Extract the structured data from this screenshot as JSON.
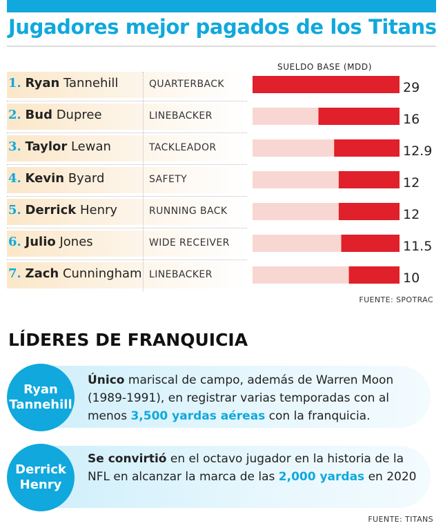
{
  "title": "Jugadores mejor pagados de los Titans",
  "chart_data": {
    "type": "bar",
    "value_header": "SUELDO BASE (MDD)",
    "xlim": [
      0,
      29
    ],
    "categories": [
      "Ryan Tannehill",
      "Bud Dupree",
      "Taylor Lewan",
      "Kevin Byard",
      "Derrick Henry",
      "Julio Jones",
      "Zach Cunningham"
    ],
    "values": [
      29,
      16,
      12.9,
      12,
      12,
      11.5,
      10
    ],
    "rows": [
      {
        "rank": "1.",
        "first": "Ryan",
        "last": "Tannehill",
        "position": "QUARTERBACK",
        "value": 29,
        "label": "29"
      },
      {
        "rank": "2.",
        "first": "Bud",
        "last": "Dupree",
        "position": "LINEBACKER",
        "value": 16,
        "label": "16"
      },
      {
        "rank": "3.",
        "first": "Taylor",
        "last": "Lewan",
        "position": "TACKLEADOR",
        "value": 12.9,
        "label": "12.9"
      },
      {
        "rank": "4.",
        "first": "Kevin",
        "last": "Byard",
        "position": "SAFETY",
        "value": 12,
        "label": "12"
      },
      {
        "rank": "5.",
        "first": "Derrick",
        "last": "Henry",
        "position": "RUNNING BACK",
        "value": 12,
        "label": "12"
      },
      {
        "rank": "6.",
        "first": "Julio",
        "last": "Jones",
        "position": "WIDE RECEIVER",
        "value": 11.5,
        "label": "11.5"
      },
      {
        "rank": "7.",
        "first": "Zach",
        "last": "Cunningham",
        "position": "LINEBACKER",
        "value": 10,
        "label": "10"
      }
    ],
    "colors": {
      "bar": "#e0202a",
      "track": "#f8d7d2"
    },
    "source": "FUENTE: SPOTRAC"
  },
  "leaders": {
    "heading": "LÍDERES DE FRANQUICIA",
    "items": [
      {
        "name": "Ryan\nTannehill",
        "lead": "Único",
        "text_a": " mariscal de campo, además de Warren Moon (1989-1991), en registrar varias temporadas con al menos ",
        "highlight": "3,500 yardas aéreas",
        "text_b": " con la franquicia."
      },
      {
        "name": "Derrick\nHenry",
        "lead": "Se convirtió",
        "text_a": " en el octavo jugador en la historia de la NFL en alcanzar la marca de las ",
        "highlight": "2,000 yardas",
        "text_b": " en 2020"
      }
    ],
    "source": "FUENTE: TITANS"
  },
  "colors": {
    "accent": "#10a8dd",
    "bar": "#e0202a",
    "track": "#f8d7d2"
  }
}
